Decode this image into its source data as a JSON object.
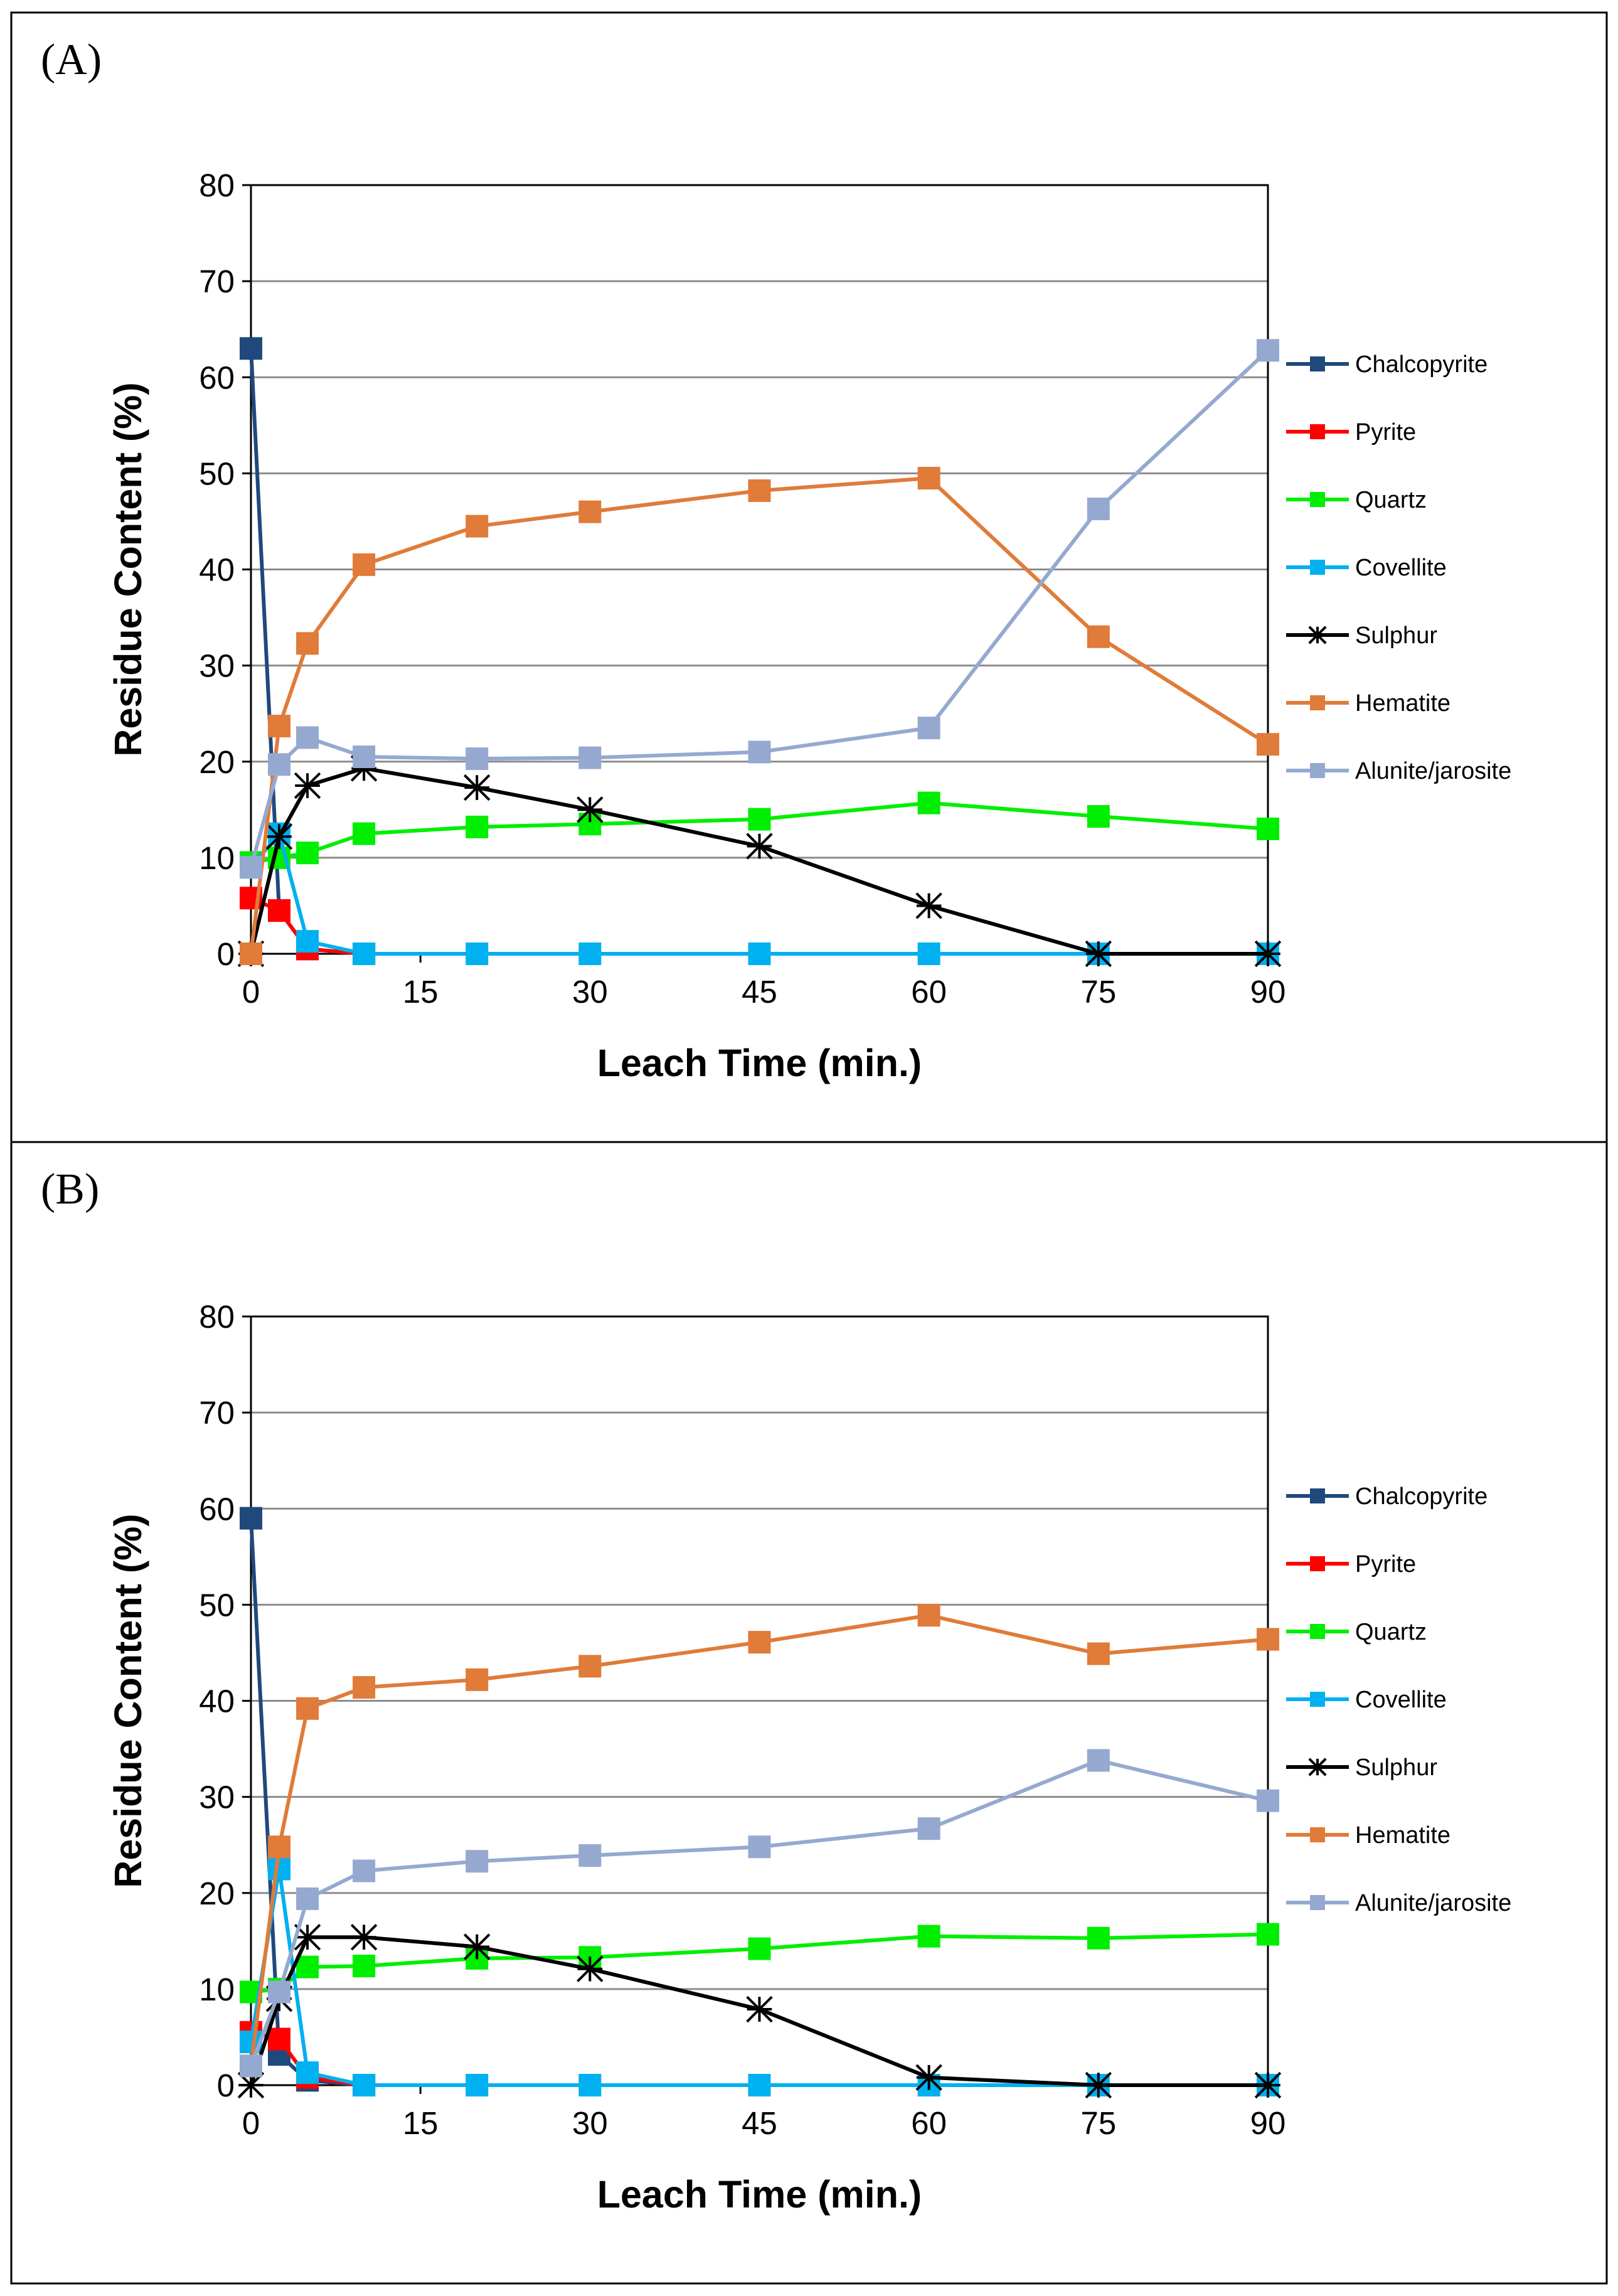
{
  "chart_data": [
    {
      "panel": "(A)",
      "type": "line",
      "xlabel": "Leach Time (min.)",
      "ylabel": "Residue Content (%)",
      "xlim": [
        0,
        90
      ],
      "ylim": [
        0,
        80
      ],
      "xticks": [
        "0",
        "15",
        "30",
        "45",
        "60",
        "75",
        "90"
      ],
      "yticks": [
        "0",
        "10",
        "20",
        "30",
        "40",
        "50",
        "60",
        "70",
        "80"
      ],
      "grid": "horizontal",
      "legend_position": "right",
      "x": [
        0,
        2.5,
        5,
        10,
        20,
        30,
        45,
        60,
        75,
        90
      ],
      "series": [
        {
          "name": "Chalcopyrite",
          "color": "#1f497d",
          "marker": "square",
          "values": [
            63,
            4.5,
            0.5,
            0,
            null,
            null,
            null,
            null,
            null,
            null
          ]
        },
        {
          "name": "Pyrite",
          "color": "#ff0000",
          "marker": "square",
          "values": [
            5.8,
            4.5,
            0.5,
            0,
            null,
            null,
            null,
            null,
            null,
            null
          ]
        },
        {
          "name": "Quartz",
          "color": "#00ee00",
          "marker": "square",
          "values": [
            9.5,
            10,
            10.5,
            12.5,
            13.2,
            13.5,
            14,
            15.7,
            14.3,
            13
          ]
        },
        {
          "name": "Covellite",
          "color": "#00b0f0",
          "marker": "square",
          "values": [
            9,
            12.5,
            1.3,
            0,
            0,
            0,
            0,
            0,
            0,
            0
          ]
        },
        {
          "name": "Sulphur",
          "color": "#000000",
          "marker": "star",
          "values": [
            0,
            12.2,
            17.5,
            19.3,
            17.3,
            15,
            11.2,
            5,
            0,
            0
          ]
        },
        {
          "name": "Hematite",
          "color": "#e07b39",
          "marker": "square",
          "values": [
            0,
            23.7,
            32.3,
            40.5,
            44.5,
            46,
            48.2,
            49.5,
            33,
            21.8
          ]
        },
        {
          "name": "Alunite/jarosite",
          "color": "#95a9d0",
          "marker": "square",
          "values": [
            9,
            19.7,
            22.5,
            20.5,
            20.3,
            20.4,
            21,
            23.5,
            46.3,
            62.8
          ]
        }
      ]
    },
    {
      "panel": "(B)",
      "type": "line",
      "xlabel": "Leach Time (min.)",
      "ylabel": "Residue Content (%)",
      "xlim": [
        0,
        90
      ],
      "ylim": [
        0,
        80
      ],
      "xticks": [
        "0",
        "15",
        "30",
        "45",
        "60",
        "75",
        "90"
      ],
      "yticks": [
        "0",
        "10",
        "20",
        "30",
        "40",
        "50",
        "60",
        "70",
        "80"
      ],
      "grid": "horizontal",
      "legend_position": "right",
      "x": [
        0,
        2.5,
        5,
        10,
        20,
        30,
        45,
        60,
        75,
        90
      ],
      "series": [
        {
          "name": "Chalcopyrite",
          "color": "#1f497d",
          "marker": "square",
          "values": [
            59,
            3.2,
            0.5,
            0,
            null,
            null,
            null,
            null,
            null,
            null
          ]
        },
        {
          "name": "Pyrite",
          "color": "#ff0000",
          "marker": "square",
          "values": [
            5.5,
            4.8,
            0.8,
            0,
            null,
            null,
            null,
            null,
            null,
            null
          ]
        },
        {
          "name": "Quartz",
          "color": "#00ee00",
          "marker": "square",
          "values": [
            9.7,
            10,
            12.3,
            12.4,
            13.2,
            13.3,
            14.2,
            15.5,
            15.3,
            15.7
          ]
        },
        {
          "name": "Covellite",
          "color": "#00b0f0",
          "marker": "square",
          "values": [
            4.5,
            22.5,
            1.3,
            0,
            0,
            0,
            0,
            0,
            0,
            0
          ]
        },
        {
          "name": "Sulphur",
          "color": "#000000",
          "marker": "star",
          "values": [
            0,
            9,
            15.4,
            15.4,
            14.4,
            12.1,
            7.9,
            0.8,
            0,
            0
          ]
        },
        {
          "name": "Hematite",
          "color": "#e07b39",
          "marker": "square",
          "values": [
            2,
            24.8,
            39.2,
            41.4,
            42.2,
            43.6,
            46.1,
            48.9,
            44.9,
            46.4
          ]
        },
        {
          "name": "Alunite/jarosite",
          "color": "#95a9d0",
          "marker": "square",
          "values": [
            2,
            9.7,
            19.4,
            22.3,
            23.3,
            23.9,
            24.8,
            26.7,
            33.8,
            29.6
          ]
        }
      ]
    }
  ]
}
